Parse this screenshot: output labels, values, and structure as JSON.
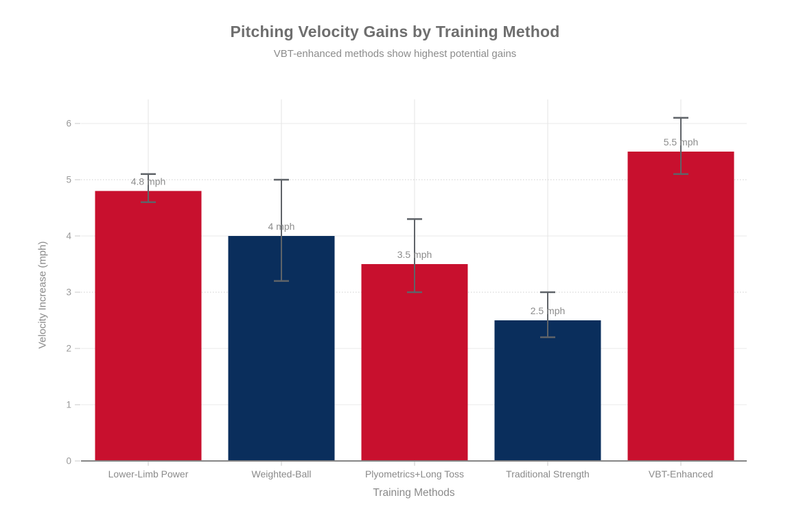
{
  "chart_data": {
    "type": "bar",
    "title": "Pitching Velocity Gains by Training Method",
    "subtitle": "VBT-enhanced methods show highest potential gains",
    "xlabel": "Training Methods",
    "ylabel": "Velocity Increase (mph)",
    "categories": [
      "Lower-Limb Power",
      "Weighted-Ball",
      "Plyometrics+Long Toss",
      "Traditional Strength",
      "VBT-Enhanced"
    ],
    "values": [
      4.8,
      4,
      3.5,
      2.5,
      5.5
    ],
    "value_labels": [
      "4.8 mph",
      "4 mph",
      "3.5 mph",
      "2.5 mph",
      "5.5 mph"
    ],
    "error_bars": {
      "low": [
        4.6,
        3.2,
        3.0,
        2.2,
        5.1
      ],
      "high": [
        5.1,
        5.0,
        4.3,
        3.0,
        6.1
      ]
    },
    "bar_colors": [
      "#C8102E",
      "#0A2E5C",
      "#C8102E",
      "#0A2E5C",
      "#C8102E"
    ],
    "ylim": [
      0,
      6.43
    ],
    "yticks": [
      0,
      1,
      2,
      3,
      4,
      5,
      6
    ],
    "ytick_labels": [
      "0",
      "1",
      "2",
      "3",
      "4",
      "5",
      "6"
    ],
    "grid": {
      "horizontal": true,
      "vertical_category_lines": true,
      "dotted_at": [
        3,
        5
      ],
      "legend": "none"
    },
    "colors": {
      "red": "#C8102E",
      "navy": "#0A2E5C",
      "error_bar": "#5f6368",
      "grid_solid": "#e8e8e8",
      "grid_dotted": "#cfcfcf",
      "vertical_grid": "#e3e3e3",
      "axis_line": "#858585",
      "tick_mark": "#c9c9c9",
      "title_text": "#6e6e6e",
      "subtitle_text": "#8c8c8c",
      "tick_text": "#999999",
      "label_text": "#8c8c8c",
      "background": "#ffffff"
    }
  }
}
